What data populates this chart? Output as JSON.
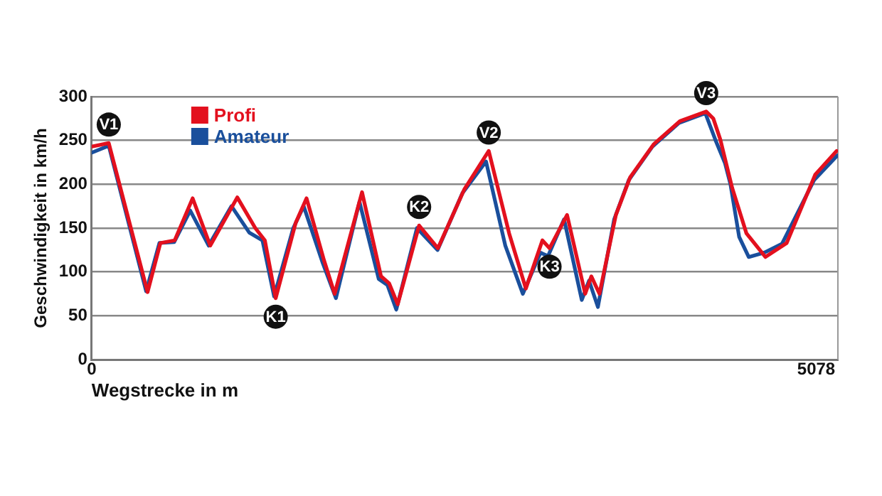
{
  "chart_data": {
    "type": "line",
    "xlabel": "Wegstrecke in m",
    "ylabel": "Geschwindigkeit in km/h",
    "xlim": [
      0,
      5230
    ],
    "xticks": [
      0,
      5078
    ],
    "ylim": [
      0,
      300
    ],
    "yticks": [
      0,
      50,
      100,
      150,
      200,
      250,
      300
    ],
    "grid": "y",
    "legend": "top left",
    "marker": "none",
    "line_style": "solid",
    "series": [
      {
        "name": "Profi",
        "color": "#e3101e",
        "x": [
          0,
          120,
          392,
          482,
          582,
          708,
          831,
          1021,
          1147,
          1214,
          1290,
          1430,
          1506,
          1629,
          1703,
          1895,
          2028,
          2085,
          2145,
          2295,
          2427,
          2611,
          2783,
          2926,
          3043,
          3159,
          3209,
          3332,
          3459,
          3502,
          3559,
          3674,
          3774,
          3941,
          4123,
          4307,
          4357,
          4406,
          4489,
          4589,
          4722,
          4871,
          5071,
          5221
        ],
        "values": [
          243,
          247,
          77,
          133,
          136,
          184,
          130,
          185,
          150,
          136,
          70,
          156,
          184,
          113,
          75,
          191,
          95,
          87,
          63,
          153,
          127,
          194,
          238,
          144,
          81,
          136,
          127,
          165,
          75,
          95,
          75,
          165,
          208,
          246,
          272,
          283,
          275,
          251,
          196,
          144,
          117,
          133,
          211,
          238
        ]
      },
      {
        "name": "Amateur",
        "color": "#1a4f9c",
        "x": [
          0,
          120,
          382,
          475,
          578,
          691,
          820,
          980,
          1104,
          1197,
          1279,
          1413,
          1486,
          1620,
          1712,
          1877,
          2012,
          2073,
          2135,
          2280,
          2424,
          2599,
          2764,
          2899,
          3022,
          3146,
          3198,
          3311,
          3435,
          3486,
          3548,
          3662,
          3765,
          3930,
          4116,
          4301,
          4373,
          4439,
          4477,
          4538,
          4605,
          4714,
          4838,
          5064,
          5227
        ],
        "values": [
          236,
          244,
          78,
          133,
          134,
          170,
          130,
          175,
          145,
          136,
          72,
          150,
          175,
          110,
          70,
          180,
          92,
          85,
          57,
          150,
          125,
          190,
          226,
          130,
          75,
          122,
          118,
          160,
          68,
          90,
          60,
          160,
          205,
          243,
          270,
          281,
          250,
          224,
          200,
          140,
          117,
          122,
          132,
          205,
          233
        ]
      }
    ],
    "annotations": [
      {
        "text": "V1",
        "x": 120,
        "y": 247
      },
      {
        "text": "K1",
        "x": 1290,
        "y": 70
      },
      {
        "text": "K2",
        "x": 2295,
        "y": 153
      },
      {
        "text": "V2",
        "x": 2783,
        "y": 238
      },
      {
        "text": "K3",
        "x": 3209,
        "y": 127
      },
      {
        "text": "V3",
        "x": 4307,
        "y": 283
      }
    ]
  }
}
